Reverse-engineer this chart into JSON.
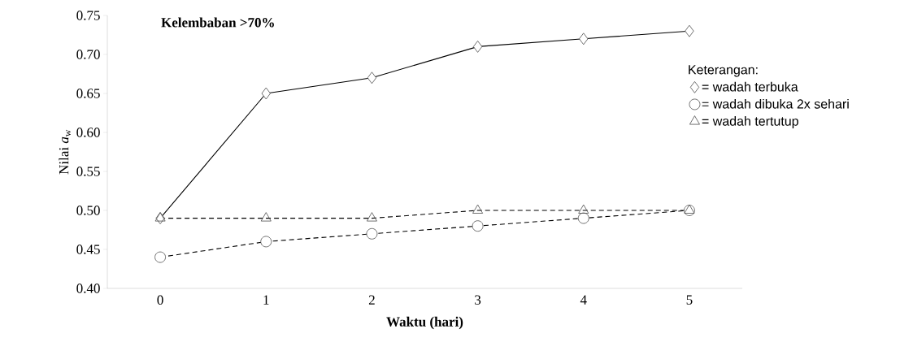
{
  "chart_data": {
    "type": "line",
    "title": "Kelembaban >70%",
    "xlabel": "Waktu (hari)",
    "ylabel": "Nilai *a*$_{w}$",
    "legend_title": "Keterangan:",
    "legend": "right",
    "categories": [
      "0",
      "1",
      "2",
      "3",
      "4",
      "5"
    ],
    "ylim": [
      0.4,
      0.75
    ],
    "yticks": [
      {
        "value": 0.4,
        "label": "0.40"
      },
      {
        "value": 0.45,
        "label": "0.45"
      },
      {
        "value": 0.5,
        "label": "0.50"
      },
      {
        "value": 0.55,
        "label": "0.55"
      },
      {
        "value": 0.6,
        "label": "0.60"
      },
      {
        "value": 0.65,
        "label": "0.65"
      },
      {
        "value": 0.7,
        "label": "0.70"
      },
      {
        "value": 0.75,
        "label": "0.75"
      }
    ],
    "grid": false,
    "series": [
      {
        "name": "= wadah terbuka",
        "color": "#000000",
        "marker": "diamond",
        "line_style": "solid",
        "values": [
          0.49,
          0.65,
          0.67,
          0.71,
          0.72,
          0.73
        ]
      },
      {
        "name": "= wadah dibuka 2x sehari",
        "color": "#000000",
        "marker": "circle",
        "line_style": "dashed",
        "values": [
          0.44,
          0.46,
          0.47,
          0.48,
          0.49,
          0.5
        ]
      },
      {
        "name": "= wadah tertutup",
        "color": "#000000",
        "marker": "triangle",
        "line_style": "dashed",
        "values": [
          0.49,
          0.49,
          0.49,
          0.5,
          0.5,
          0.5
        ]
      }
    ]
  }
}
